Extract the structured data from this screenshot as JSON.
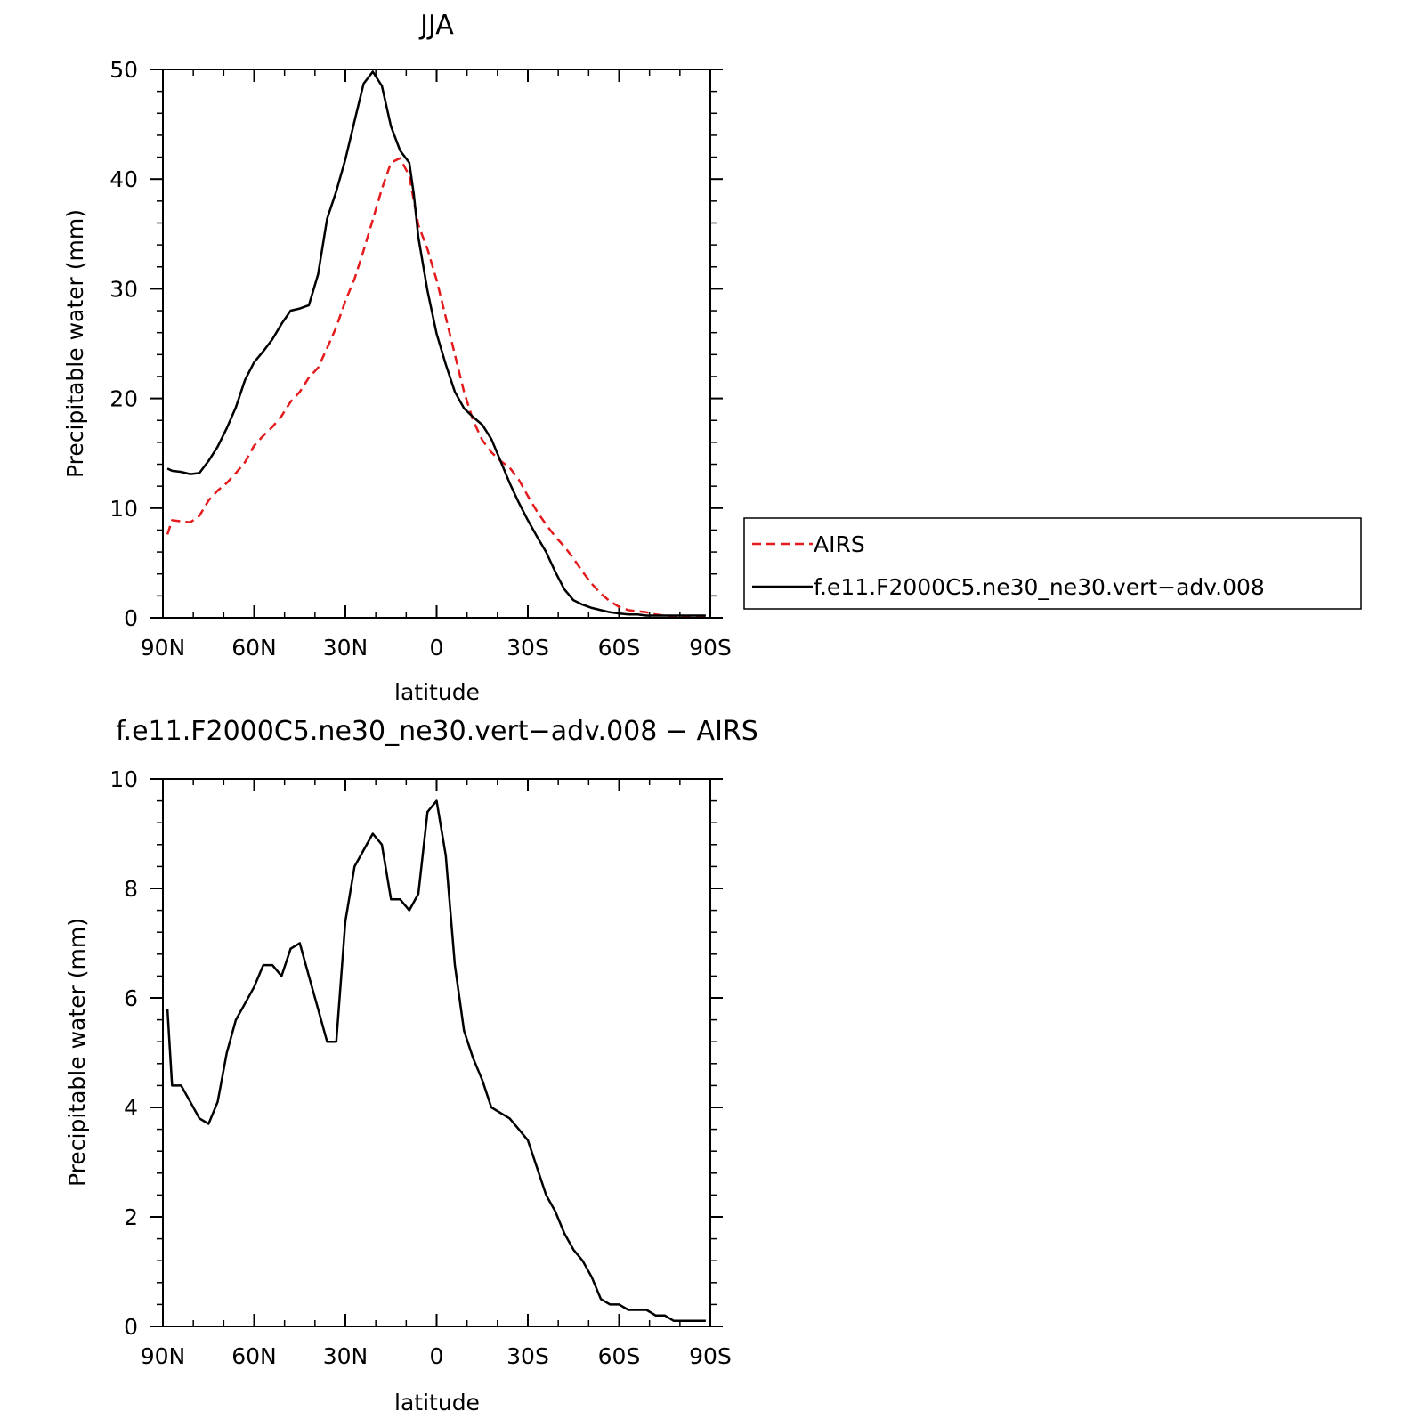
{
  "chart_data": [
    {
      "type": "line",
      "title": "JJA",
      "xlabel": "latitude",
      "ylabel": "Precipitable water (mm)",
      "xlim": [
        90,
        -90
      ],
      "ylim": [
        0,
        50
      ],
      "x_ticks": [
        90,
        60,
        30,
        0,
        -30,
        -60,
        -90
      ],
      "x_tick_labels": [
        "90N",
        "60N",
        "30N",
        "0",
        "30S",
        "60S",
        "90S"
      ],
      "y_ticks": [
        0,
        10,
        20,
        30,
        40,
        50
      ],
      "y_tick_labels": [
        "0",
        "10",
        "20",
        "30",
        "40",
        "50"
      ],
      "grid": false,
      "legend_position": "right",
      "series": [
        {
          "name": "AIRS",
          "color": "#e41a1c",
          "dash": "dashed",
          "x": [
            88.5,
            87,
            84,
            81,
            78,
            75,
            72,
            69,
            66,
            63,
            60,
            57,
            54,
            51,
            48,
            45,
            42,
            39,
            36,
            33,
            30,
            27,
            24,
            21,
            18,
            15,
            12,
            9,
            7.5,
            6,
            3,
            0,
            -3,
            -6,
            -9,
            -12,
            -15,
            -18,
            -21,
            -24,
            -27,
            -30,
            -33,
            -36,
            -39,
            -42,
            -45,
            -48,
            -51,
            -54,
            -57,
            -60,
            -63,
            -66,
            -69,
            -72,
            -75,
            -78,
            -81,
            -84,
            -87,
            -88.5
          ],
          "y": [
            7.6,
            8.9,
            8.8,
            8.7,
            9.3,
            10.7,
            11.6,
            12.3,
            13.2,
            14.2,
            15.7,
            16.6,
            17.4,
            18.4,
            19.7,
            20.6,
            21.9,
            22.8,
            24.6,
            26.5,
            28.9,
            30.9,
            33.5,
            36.3,
            39.1,
            41.5,
            41.9,
            40.3,
            38.0,
            35.8,
            33.6,
            30.8,
            27.4,
            24.0,
            20.6,
            18.0,
            16.2,
            15.1,
            14.3,
            13.7,
            12.6,
            11.1,
            9.7,
            8.5,
            7.4,
            6.5,
            5.4,
            4.2,
            3.1,
            2.2,
            1.5,
            1.0,
            0.7,
            0.6,
            0.5,
            0.3,
            0.2,
            0.1,
            0.1,
            0.1,
            0.1,
            0.1
          ]
        },
        {
          "name": "f.e11.F2000C5.ne30_ne30.vert−adv.008",
          "color": "#000000",
          "dash": "solid",
          "x": [
            88.5,
            87,
            84,
            81,
            78,
            75,
            72,
            69,
            66,
            63,
            60,
            57,
            54,
            51,
            48,
            45,
            42,
            39,
            36,
            33,
            30,
            27,
            24,
            21,
            18,
            15,
            12,
            9,
            7.5,
            6,
            3,
            0,
            -3,
            -6,
            -9,
            -12,
            -15,
            -18,
            -21,
            -24,
            -27,
            -30,
            -33,
            -36,
            -39,
            -42,
            -45,
            -48,
            -51,
            -54,
            -57,
            -60,
            -63,
            -66,
            -69,
            -72,
            -75,
            -78,
            -81,
            -84,
            -87,
            -88.5
          ],
          "y": [
            13.6,
            13.4,
            13.3,
            13.1,
            13.2,
            14.3,
            15.6,
            17.3,
            19.2,
            21.7,
            23.3,
            24.3,
            25.4,
            26.8,
            28.0,
            28.2,
            28.5,
            31.3,
            36.4,
            38.9,
            41.8,
            45.3,
            48.7,
            49.8,
            48.5,
            44.8,
            42.6,
            41.5,
            38.6,
            34.7,
            29.8,
            25.9,
            23.1,
            20.6,
            19.1,
            18.3,
            17.6,
            16.3,
            14.3,
            12.3,
            10.5,
            8.9,
            7.4,
            6.0,
            4.2,
            2.6,
            1.6,
            1.2,
            0.9,
            0.7,
            0.5,
            0.4,
            0.3,
            0.3,
            0.2,
            0.2,
            0.2,
            0.2,
            0.2,
            0.2,
            0.2,
            0.2
          ]
        }
      ]
    },
    {
      "type": "line",
      "title": "f.e11.F2000C5.ne30_ne30.vert−adv.008 − AIRS",
      "xlabel": "latitude",
      "ylabel": "Precipitable water (mm)",
      "xlim": [
        90,
        -90
      ],
      "ylim": [
        0,
        10
      ],
      "x_ticks": [
        90,
        60,
        30,
        0,
        -30,
        -60,
        -90
      ],
      "x_tick_labels": [
        "90N",
        "60N",
        "30N",
        "0",
        "30S",
        "60S",
        "90S"
      ],
      "y_ticks": [
        0,
        2,
        4,
        6,
        8,
        10
      ],
      "y_tick_labels": [
        "0",
        "2",
        "4",
        "6",
        "8",
        "10"
      ],
      "grid": false,
      "series": [
        {
          "color": "#000000",
          "dash": "solid",
          "x": [
            88.5,
            87,
            84,
            81,
            78,
            75,
            72,
            69,
            66,
            63,
            60,
            57,
            54,
            51,
            48,
            45,
            42,
            39,
            36,
            33,
            30,
            27,
            24,
            21,
            18,
            15,
            12,
            9,
            6,
            3,
            0,
            -3,
            -6,
            -9,
            -12,
            -15,
            -18,
            -21,
            -24,
            -27,
            -30,
            -33,
            -36,
            -39,
            -42,
            -45,
            -48,
            -51,
            -54,
            -57,
            -60,
            -63,
            -66,
            -69,
            -72,
            -75,
            -78,
            -81,
            -84,
            -87,
            -88.5
          ],
          "y": [
            5.8,
            4.4,
            4.4,
            4.1,
            3.8,
            3.7,
            4.1,
            5.0,
            5.6,
            5.9,
            6.2,
            6.6,
            6.6,
            6.4,
            6.9,
            7.0,
            6.4,
            5.8,
            5.2,
            5.2,
            7.4,
            8.4,
            8.7,
            9.0,
            8.8,
            7.8,
            7.8,
            7.6,
            7.9,
            9.4,
            9.6,
            8.6,
            6.6,
            5.4,
            4.9,
            4.5,
            4.0,
            3.9,
            3.8,
            3.6,
            3.4,
            2.9,
            2.4,
            2.1,
            1.7,
            1.4,
            1.2,
            0.9,
            0.5,
            0.4,
            0.4,
            0.3,
            0.3,
            0.3,
            0.2,
            0.2,
            0.1,
            0.1,
            0.1,
            0.1,
            0.1
          ]
        }
      ]
    }
  ]
}
